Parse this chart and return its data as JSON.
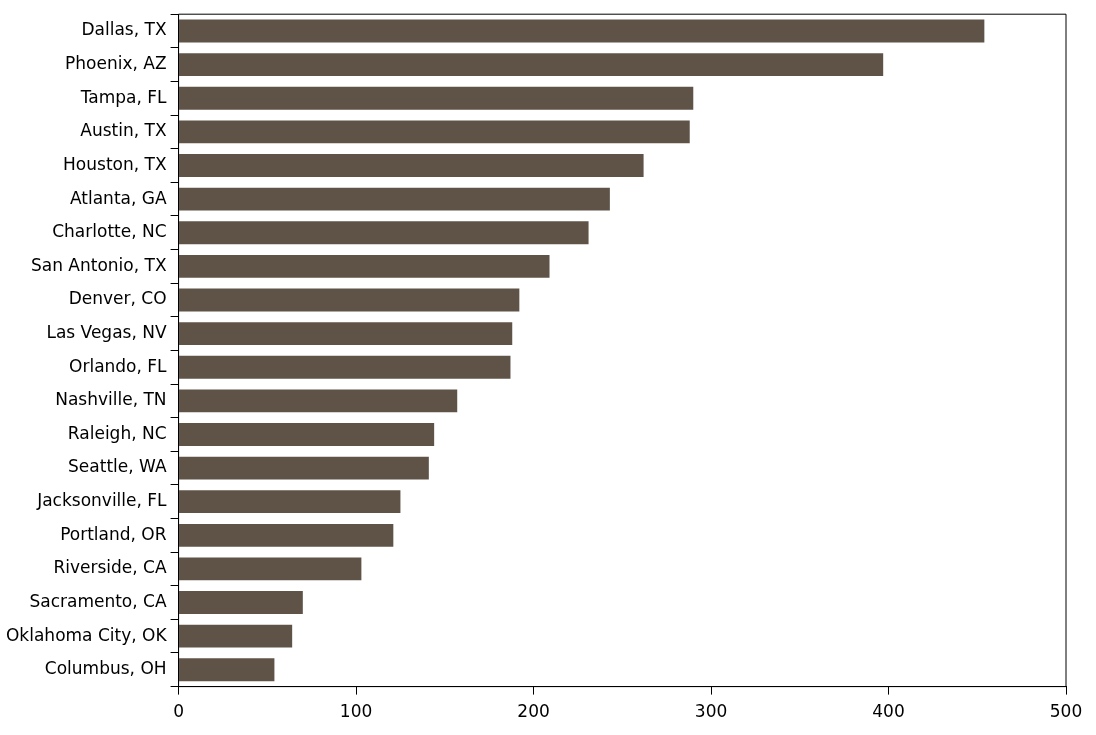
{
  "chart_data": {
    "type": "bar",
    "orientation": "horizontal",
    "categories": [
      "Dallas, TX",
      "Phoenix, AZ",
      "Tampa, FL",
      "Austin, TX",
      "Houston, TX",
      "Atlanta, GA",
      "Charlotte, NC",
      "San Antonio, TX",
      "Denver, CO",
      "Las Vegas, NV",
      "Orlando, FL",
      "Nashville, TN",
      "Raleigh, NC",
      "Seattle, WA",
      "Jacksonville, FL",
      "Portland, OR",
      "Riverside, CA",
      "Sacramento, CA",
      "Oklahoma City, OK",
      "Columbus, OH"
    ],
    "values": [
      454,
      397,
      290,
      288,
      262,
      243,
      231,
      209,
      192,
      188,
      187,
      157,
      144,
      141,
      125,
      121,
      103,
      70,
      64,
      54
    ],
    "color": "#5f5348",
    "xlim": [
      0,
      500
    ],
    "xticks": [
      0,
      100,
      200,
      300,
      400,
      500
    ],
    "grid": false,
    "legend": false
  }
}
